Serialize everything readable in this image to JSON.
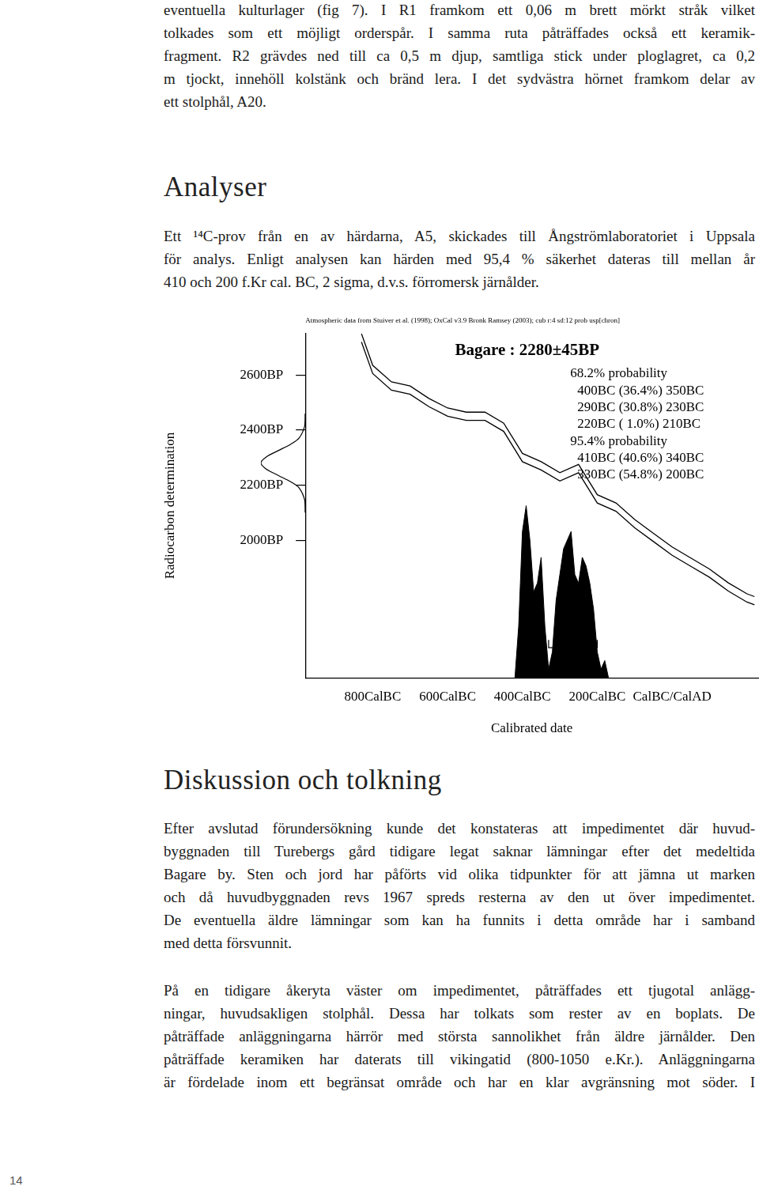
{
  "page": {
    "intro": {
      "lines": [
        "eventuella kulturlager (fig 7). I R1 framkom ett 0,06 m brett mörkt stråk vilket",
        "tolkades som ett möjligt orderspår. I samma ruta påträffades också ett keramik-",
        "fragment. R2 grävdes ned till ca 0,5 m djup, samtliga stick under ploglagret, ca 0,2",
        "m tjockt, innehöll kolstänk och bränd lera. I det sydvästra hörnet framkom delar av",
        "ett stolphål, A20."
      ]
    },
    "heading_analysis": "Analyser",
    "analysis": {
      "lines": [
        "Ett ¹⁴C-prov från en av härdarna, A5, skickades till Ångströmlaboratoriet i Uppsala",
        "för analys. Enligt analysen kan härden med 95,4 % säkerhet dateras till mellan år",
        "410 och 200 f.Kr cal. BC, 2 sigma, d.v.s. förromersk järnålder."
      ]
    },
    "heading_discussion": "Diskussion och tolkning",
    "discussion": [
      {
        "lines": [
          "Efter avslutad förundersökning kunde det konstateras att impedimentet där huvud-",
          "byggnaden till Turebergs gård tidigare legat saknar lämningar efter det medeltida",
          "Bagare by. Sten och jord har påförts vid olika tidpunkter för att jämna ut marken",
          "och då huvudbyggnaden revs 1967 spreds resterna av den ut över impedimentet.",
          "De eventuella äldre lämningar som kan ha funnits i detta område har i samband",
          "med detta försvunnit."
        ]
      },
      {
        "lines": [
          "På en tidigare åkeryta väster om impedimentet, påträffades ett tjugotal anlägg-",
          "ningar, huvudsakligen stolphål. Dessa har tolkats som rester av en boplats. De",
          "påträffade anläggningarna härrör med största sannolikhet från äldre järnålder. Den",
          "påträffade keramiken har daterats till vikingatid (800-1050 e.Kr.). Anläggningarna",
          "är fördelade inom ett begränsat område och har en klar avgränsning mot söder. I"
        ]
      }
    ],
    "page_number": "14"
  },
  "chart_data": {
    "type": "line",
    "source_note": "Atmospheric data from Stuiver et al. (1998); OxCal v3.9 Bronk Ramsey (2003); cub r:4 sd:12 prob usp[chron]",
    "title": "Bagare : 2280±45BP",
    "xlabel": "Calibrated date",
    "ylabel": "Radiocarbon determination",
    "x": [
      -830,
      -800,
      -750,
      -700,
      -650,
      -600,
      -550,
      -500,
      -450,
      -400,
      -350,
      -300,
      -250,
      -200,
      -150,
      -100,
      -50,
      0,
      50,
      100,
      150,
      200,
      220
    ],
    "series": [
      {
        "color": "#000000",
        "values": [
          2750,
          2635,
          2575,
          2560,
          2515,
          2480,
          2465,
          2465,
          2425,
          2315,
          2285,
          2245,
          2275,
          2165,
          2135,
          2075,
          2025,
          1975,
          1935,
          1895,
          1845,
          1805,
          1795
        ]
      },
      {
        "color": "#000000",
        "values": [
          2720,
          2605,
          2545,
          2530,
          2485,
          2450,
          2435,
          2435,
          2395,
          2285,
          2255,
          2215,
          2245,
          2135,
          2105,
          2045,
          1995,
          1945,
          1905,
          1865,
          1815,
          1775,
          1765
        ]
      }
    ],
    "xlim": [
      -980,
      230
    ],
    "xticks": [
      {
        "value": -800,
        "label": "800CalBC"
      },
      {
        "value": -600,
        "label": "600CalBC"
      },
      {
        "value": -400,
        "label": "400CalBC"
      },
      {
        "value": -200,
        "label": "200CalBC"
      },
      {
        "value": 0,
        "label": "CalBC/CalAD"
      }
    ],
    "ylim": [
      1500,
      2750
    ],
    "yticks": [
      {
        "value": 2000,
        "label": "2000BP"
      },
      {
        "value": 2200,
        "label": "2200BP"
      },
      {
        "value": 2400,
        "label": "2400BP"
      },
      {
        "value": 2600,
        "label": "2600BP"
      }
    ],
    "grid": false,
    "probability": {
      "color": "#000000",
      "ylim": [
        0,
        2
      ],
      "x": [
        -420,
        -410,
        -400,
        -390,
        -380,
        -370,
        -360,
        -350,
        -340,
        -330,
        -320,
        -310,
        -300,
        -290,
        -280,
        -270,
        -260,
        -250,
        -240,
        -230,
        -220,
        -210,
        -200,
        -190,
        -180,
        -170
      ],
      "values": [
        0,
        0.3,
        0.85,
        1.0,
        0.8,
        0.5,
        0.55,
        0.7,
        0.3,
        0.05,
        0.15,
        0.45,
        0.6,
        0.75,
        0.8,
        0.85,
        0.6,
        0.55,
        0.7,
        0.65,
        0.55,
        0.4,
        0.15,
        0.05,
        0.1,
        0
      ]
    },
    "measurement": {
      "color": "#000000",
      "xlim": [
        0,
        1
      ],
      "bp": [
        2100,
        2145,
        2190,
        2212,
        2235,
        2258,
        2280,
        2302,
        2325,
        2348,
        2370,
        2415,
        2460
      ],
      "density": [
        0,
        0.01,
        0.14,
        0.33,
        0.61,
        0.88,
        1,
        0.88,
        0.61,
        0.33,
        0.14,
        0.01,
        0
      ]
    },
    "ranges": [
      {
        "title": "68.2% probability",
        "intervals": [
          {
            "from": -400,
            "to": -350,
            "label": "400BC (36.4%) 350BC"
          },
          {
            "from": -290,
            "to": -230,
            "label": "290BC (30.8%) 230BC"
          },
          {
            "from": -220,
            "to": -210,
            "label": "220BC ( 1.0%) 210BC"
          }
        ]
      },
      {
        "title": "95.4% probability",
        "intervals": [
          {
            "from": -410,
            "to": -340,
            "label": "410BC (40.6%) 340BC"
          },
          {
            "from": -330,
            "to": -200,
            "label": "330BC (54.8%) 200BC"
          }
        ]
      }
    ]
  }
}
